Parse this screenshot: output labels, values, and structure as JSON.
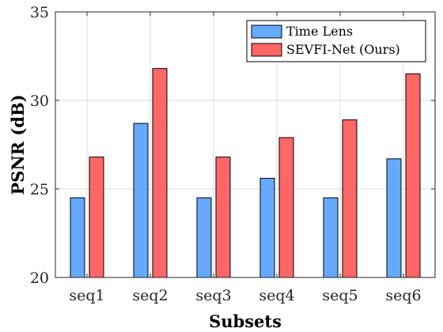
{
  "chart_data": {
    "type": "bar",
    "categories": [
      "seq1",
      "seq2",
      "seq3",
      "seq4",
      "seq5",
      "seq6"
    ],
    "series": [
      {
        "name": "Time Lens",
        "values": [
          24.5,
          28.7,
          24.5,
          25.6,
          24.5,
          26.7
        ],
        "color": "#66aaff"
      },
      {
        "name": "SEVFI-Net (Ours)",
        "values": [
          26.8,
          31.8,
          26.8,
          27.9,
          28.9,
          31.5
        ],
        "color": "#ff6666"
      }
    ],
    "xlabel": "Subsets",
    "ylabel": "PSNR (dB)",
    "ylim": [
      20,
      35
    ],
    "yticks": [
      "20",
      "25",
      "30",
      "35"
    ],
    "grid": true,
    "legend_position": "top-right"
  }
}
